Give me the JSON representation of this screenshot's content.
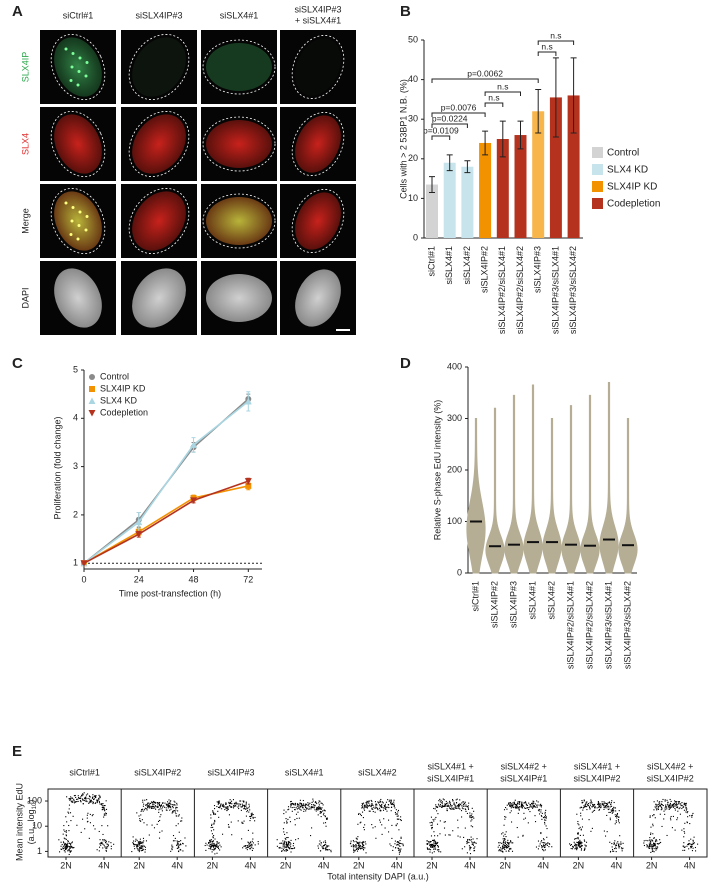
{
  "panel_labels": [
    "A",
    "B",
    "C",
    "D",
    "E"
  ],
  "panel_a": {
    "columns": [
      [
        "siCtrl#1"
      ],
      [
        "siSLX4IP#3"
      ],
      [
        "siSLX4#1"
      ],
      [
        "siSLX4IP#3",
        "+ siSLX4#1"
      ]
    ],
    "rows": [
      {
        "text": "SLX4IP",
        "color": "#2fa84f"
      },
      {
        "text": "SLX4",
        "color": "#e03030"
      },
      {
        "text": "Merge",
        "color": "#222222"
      },
      {
        "text": "DAPI",
        "color": "#222222"
      }
    ]
  },
  "chart_data": [
    {
      "type": "bar",
      "y_label": "Cells with > 2 53BP1 N.B. (%)",
      "categories": [
        "siCtrl#1",
        "siSLX4#1",
        "siSLX4#2",
        "siSLX4IP#2",
        "siSLX4IP#2/siSLX4#1",
        "siSLX4IP#2/siSLX4#2",
        "siSLX4IP#3",
        "siSLX4IP#3/siSLX4#1",
        "siSLX4IP#3/siSLX4#2"
      ],
      "values": [
        13.5,
        19,
        18,
        24,
        25,
        26,
        32,
        35.5,
        36
      ],
      "errors": [
        2,
        2,
        1.5,
        3,
        4.5,
        3.5,
        5.5,
        10,
        9.5
      ],
      "colors": [
        "#d3d3d3",
        "#c7e4ec",
        "#c7e4ec",
        "#f39200",
        "#b5331e",
        "#b5331e",
        "#f8b54a",
        "#b5331e",
        "#b5331e"
      ],
      "ylim": [
        0,
        50
      ],
      "yticks": [
        0,
        10,
        20,
        30,
        40,
        50
      ],
      "legend": [
        {
          "name": "Control",
          "color": "#d3d3d3"
        },
        {
          "name": "SLX4 KD",
          "color": "#c7e4ec"
        },
        {
          "name": "SLX4IP KD",
          "color": "#f39200"
        },
        {
          "name": "Codepletion",
          "color": "#b5331e"
        }
      ],
      "annotations": [
        {
          "text": "p=0.0109",
          "from": 0,
          "to": 1
        },
        {
          "text": "p=0.0224",
          "from": 0,
          "to": 2
        },
        {
          "text": "p=0.0076",
          "from": 0,
          "to": 3
        },
        {
          "text": "p=0.0062",
          "from": 0,
          "to": 6
        },
        {
          "text": "n.s",
          "from": 3,
          "to": 4
        },
        {
          "text": "n.s",
          "from": 3,
          "to": 5
        },
        {
          "text": "n.s",
          "from": 6,
          "to": 7
        },
        {
          "text": "n.s",
          "from": 6,
          "to": 8
        }
      ]
    },
    {
      "type": "line",
      "x_label": "Time post-transfection (h)",
      "y_label": "Proliferation (fold change)",
      "x": [
        0,
        24,
        48,
        72
      ],
      "xlim": [
        0,
        78
      ],
      "xticks": [
        0,
        24,
        48,
        72
      ],
      "ylim": [
        0.88,
        5
      ],
      "yticks": [
        1,
        2,
        3,
        4,
        5
      ],
      "refline": 1,
      "series": [
        {
          "name": "Control",
          "color": "#8a8a8a",
          "marker": "circle",
          "values": [
            1,
            1.9,
            3.4,
            4.4
          ],
          "errors": [
            0.02,
            0.15,
            0.1,
            0.1
          ]
        },
        {
          "name": "SLX4IP KD",
          "color": "#f39200",
          "marker": "square",
          "values": [
            1,
            1.65,
            2.35,
            2.6
          ],
          "errors": [
            0.02,
            0.08,
            0.06,
            0.08
          ]
        },
        {
          "name": "SLX4 KD",
          "color": "#a9d6e2",
          "marker": "triangle",
          "values": [
            1,
            1.85,
            3.45,
            4.35
          ],
          "errors": [
            0.02,
            0.2,
            0.15,
            0.2
          ]
        },
        {
          "name": "Codepletion",
          "color": "#b5331e",
          "marker": "triangle-down",
          "values": [
            1,
            1.6,
            2.3,
            2.7
          ],
          "errors": [
            0.02,
            0.06,
            0.05,
            0.06
          ]
        }
      ]
    },
    {
      "type": "violin",
      "y_label": "Relative S-phase EdU intensity (%)",
      "categories": [
        "siCtrl#1",
        "siSLX4IP#2",
        "siSLX4IP#3",
        "siSLX4#1",
        "siSLX4#2",
        "siSLX4IP#2/siSLX4#1",
        "siSLX4IP#2/siSLX4#2",
        "siSLX4IP#3/siSLX4#1",
        "siSLX4IP#3/siSLX4#2"
      ],
      "values": [
        100,
        52,
        55,
        60,
        60,
        55,
        53,
        65,
        54
      ],
      "color": "#b5ae95",
      "ylim": [
        0,
        400
      ],
      "yticks": [
        0,
        100,
        200,
        300,
        400
      ]
    }
  ],
  "panel_e": {
    "titles": [
      [
        "siCtrl#1"
      ],
      [
        "siSLX4IP#2"
      ],
      [
        "siSLX4IP#3"
      ],
      [
        "siSLX4#1"
      ],
      [
        "siSLX4#2"
      ],
      [
        "siSLX4#1 +",
        "siSLX4IP#1"
      ],
      [
        "siSLX4#2 +",
        "siSLX4IP#1"
      ],
      [
        "siSLX4#1 +",
        "siSLX4IP#2"
      ],
      [
        "siSLX4#2 +",
        "siSLX4IP#2"
      ]
    ],
    "x_ticks": [
      "2N",
      "4N"
    ],
    "y_scale": "log",
    "ylim": [
      0.6,
      300
    ],
    "yticks": [
      1,
      10,
      100
    ],
    "y_label": [
      "Mean intensity EdU",
      "(a.u., log",
      "10",
      ")"
    ],
    "x_label": "Total intensity DAPI (a.u.)"
  }
}
